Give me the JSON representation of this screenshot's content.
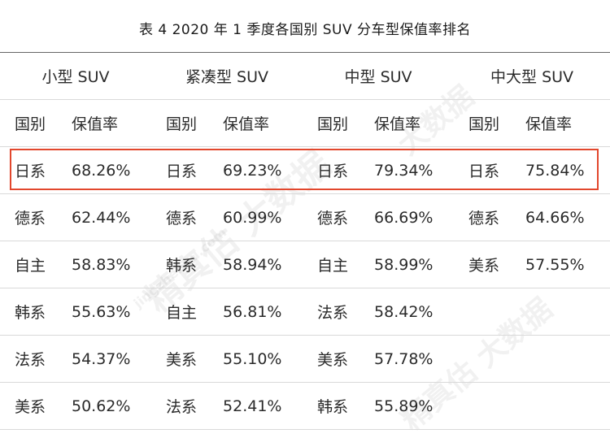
{
  "caption": "表 4    2020 年 1 季度各国别 SUV 分车型保值率排名",
  "groups": [
    "小型 SUV",
    "紧凑型 SUV",
    "中型 SUV",
    "中大型 SUV"
  ],
  "subheaders": [
    "国别",
    "保值率",
    "国别",
    "保值率",
    "国别",
    "保值率",
    "国别",
    "保值率"
  ],
  "rows": [
    [
      "日系",
      "68.26%",
      "日系",
      "69.23%",
      "日系",
      "79.34%",
      "日系",
      "75.84%"
    ],
    [
      "德系",
      "62.44%",
      "德系",
      "60.99%",
      "德系",
      "66.69%",
      "德系",
      "64.66%"
    ],
    [
      "自主",
      "58.83%",
      "韩系",
      "58.94%",
      "自主",
      "58.99%",
      "美系",
      "57.55%"
    ],
    [
      "韩系",
      "55.63%",
      "自主",
      "56.81%",
      "法系",
      "58.42%",
      "",
      ""
    ],
    [
      "法系",
      "54.37%",
      "美系",
      "55.10%",
      "美系",
      "57.78%",
      "",
      ""
    ],
    [
      "美系",
      "50.62%",
      "法系",
      "52.41%",
      "韩系",
      "55.89%",
      "",
      ""
    ]
  ],
  "highlight_color": "#e2472d",
  "watermark": [
    "精真估",
    "大数据",
    "jingzhengu.com"
  ]
}
